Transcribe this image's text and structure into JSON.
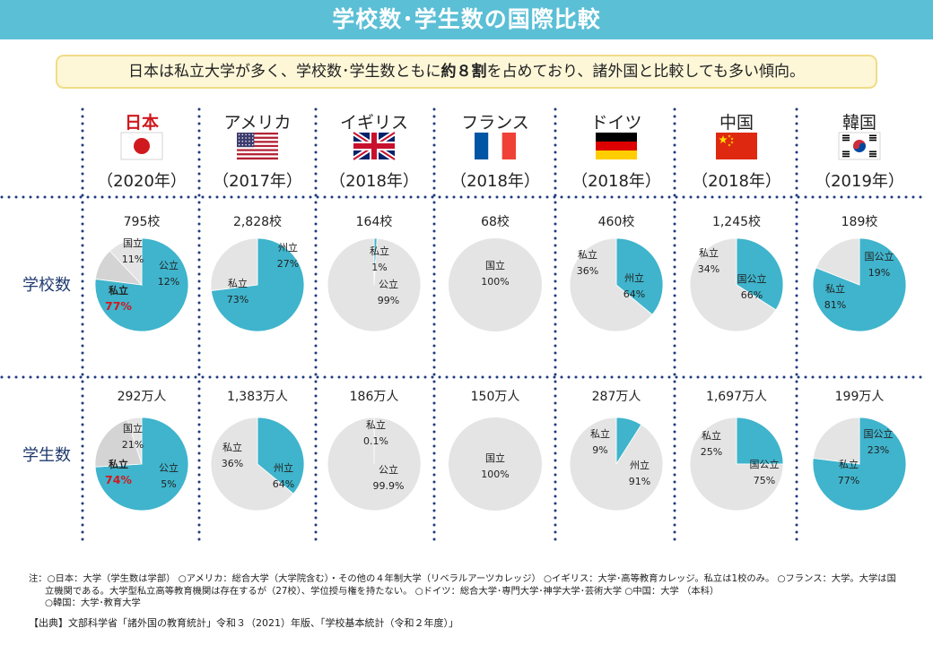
{
  "title": "学校数･学生数の国際比較",
  "summary": {
    "before": "日本は私立大学が多く、学校数･学生数ともに",
    "bold": "約８割",
    "after": "を占めており、諸外国と比較しても多い傾向。"
  },
  "row_labels": {
    "schools": "学校数",
    "students": "学生数"
  },
  "colors": {
    "private": "#3fb4cc",
    "other": "#e4e4e4",
    "other_dark": "#d4d4d4",
    "red": "#d0191e",
    "navy": "#1f3a6e",
    "dots": "#1f3a7e"
  },
  "chart_data": {
    "type": "pie",
    "countries": [
      {
        "name": "日本",
        "year": "（2020年）",
        "flag": "japan-flag",
        "highlight": true,
        "schools": {
          "total": "795校",
          "slices": [
            {
              "label": "私立",
              "pct": "77%",
              "value": 77,
              "color": "private",
              "highlight": true
            },
            {
              "label": "国立",
              "pct": "11%",
              "value": 11,
              "color": "other_dark"
            },
            {
              "label": "公立",
              "pct": "12%",
              "value": 12,
              "color": "other"
            }
          ]
        },
        "students": {
          "total": "292万人",
          "slices": [
            {
              "label": "私立",
              "pct": "74%",
              "value": 74,
              "color": "private",
              "highlight": true
            },
            {
              "label": "国立",
              "pct": "21%",
              "value": 21,
              "color": "other_dark"
            },
            {
              "label": "公立",
              "pct": "5%",
              "value": 5,
              "color": "other"
            }
          ]
        }
      },
      {
        "name": "アメリカ",
        "year": "（2017年）",
        "flag": "usa-flag",
        "schools": {
          "total": "2,828校",
          "slices": [
            {
              "label": "私立",
              "pct": "73%",
              "value": 73,
              "color": "private"
            },
            {
              "label": "州立",
              "pct": "27%",
              "value": 27,
              "color": "other"
            }
          ]
        },
        "students": {
          "total": "1,383万人",
          "slices": [
            {
              "label": "私立",
              "pct": "36%",
              "value": 36,
              "color": "private"
            },
            {
              "label": "州立",
              "pct": "64%",
              "value": 64,
              "color": "other"
            }
          ]
        }
      },
      {
        "name": "イギリス",
        "year": "（2018年）",
        "flag": "uk-flag",
        "schools": {
          "total": "164校",
          "slices": [
            {
              "label": "私立",
              "pct": "1%",
              "value": 1,
              "color": "private"
            },
            {
              "label": "公立",
              "pct": "99%",
              "value": 99,
              "color": "other"
            }
          ]
        },
        "students": {
          "total": "186万人",
          "slices": [
            {
              "label": "私立",
              "pct": "0.1%",
              "value": 0.1,
              "color": "private"
            },
            {
              "label": "公立",
              "pct": "99.9%",
              "value": 99.9,
              "color": "other"
            }
          ]
        }
      },
      {
        "name": "フランス",
        "year": "（2018年）",
        "flag": "france-flag",
        "schools": {
          "total": "68校",
          "slices": [
            {
              "label": "国立",
              "pct": "100%",
              "value": 100,
              "color": "other"
            }
          ]
        },
        "students": {
          "total": "150万人",
          "slices": [
            {
              "label": "国立",
              "pct": "100%",
              "value": 100,
              "color": "other"
            }
          ]
        }
      },
      {
        "name": "ドイツ",
        "year": "（2018年）",
        "flag": "germany-flag",
        "schools": {
          "total": "460校",
          "slices": [
            {
              "label": "私立",
              "pct": "36%",
              "value": 36,
              "color": "private"
            },
            {
              "label": "州立",
              "pct": "64%",
              "value": 64,
              "color": "other"
            }
          ]
        },
        "students": {
          "total": "287万人",
          "slices": [
            {
              "label": "私立",
              "pct": "9%",
              "value": 9,
              "color": "private"
            },
            {
              "label": "州立",
              "pct": "91%",
              "value": 91,
              "color": "other"
            }
          ]
        }
      },
      {
        "name": "中国",
        "year": "（2018年）",
        "flag": "china-flag",
        "schools": {
          "total": "1,245校",
          "slices": [
            {
              "label": "私立",
              "pct": "34%",
              "value": 34,
              "color": "private"
            },
            {
              "label": "国公立",
              "pct": "66%",
              "value": 66,
              "color": "other"
            }
          ]
        },
        "students": {
          "total": "1,697万人",
          "slices": [
            {
              "label": "私立",
              "pct": "25%",
              "value": 25,
              "color": "private"
            },
            {
              "label": "国公立",
              "pct": "75%",
              "value": 75,
              "color": "other"
            }
          ]
        }
      },
      {
        "name": "韓国",
        "year": "（2019年）",
        "flag": "korea-flag",
        "schools": {
          "total": "189校",
          "slices": [
            {
              "label": "私立",
              "pct": "81%",
              "value": 81,
              "color": "private"
            },
            {
              "label": "国公立",
              "pct": "19%",
              "value": 19,
              "color": "other"
            }
          ]
        },
        "students": {
          "total": "199万人",
          "slices": [
            {
              "label": "私立",
              "pct": "77%",
              "value": 77,
              "color": "private"
            },
            {
              "label": "国公立",
              "pct": "23%",
              "value": 23,
              "color": "other"
            }
          ]
        }
      }
    ]
  },
  "notes": {
    "line1": "注：○日本：大学（学生数は学部）  ○アメリカ：総合大学（大学院含む）・その他の４年制大学（リベラルアーツカレッジ）  ○イギリス：大学･高等教育カレッジ。私立は1校のみ。 ○フランス：大学。大学は国",
    "line2": "立機関である。大学型私立高等教育機関は存在するが（27校）、学位授与権を持たない。 ○ドイツ：総合大学･専門大学･神学大学･芸術大学 ○中国：大学  （本科）",
    "line3": "○韓国：大学･教育大学"
  },
  "source": "【出典】文部科学省「諸外国の教育統計」令和３（2021）年版、「学校基本統計（令和２年度）」"
}
